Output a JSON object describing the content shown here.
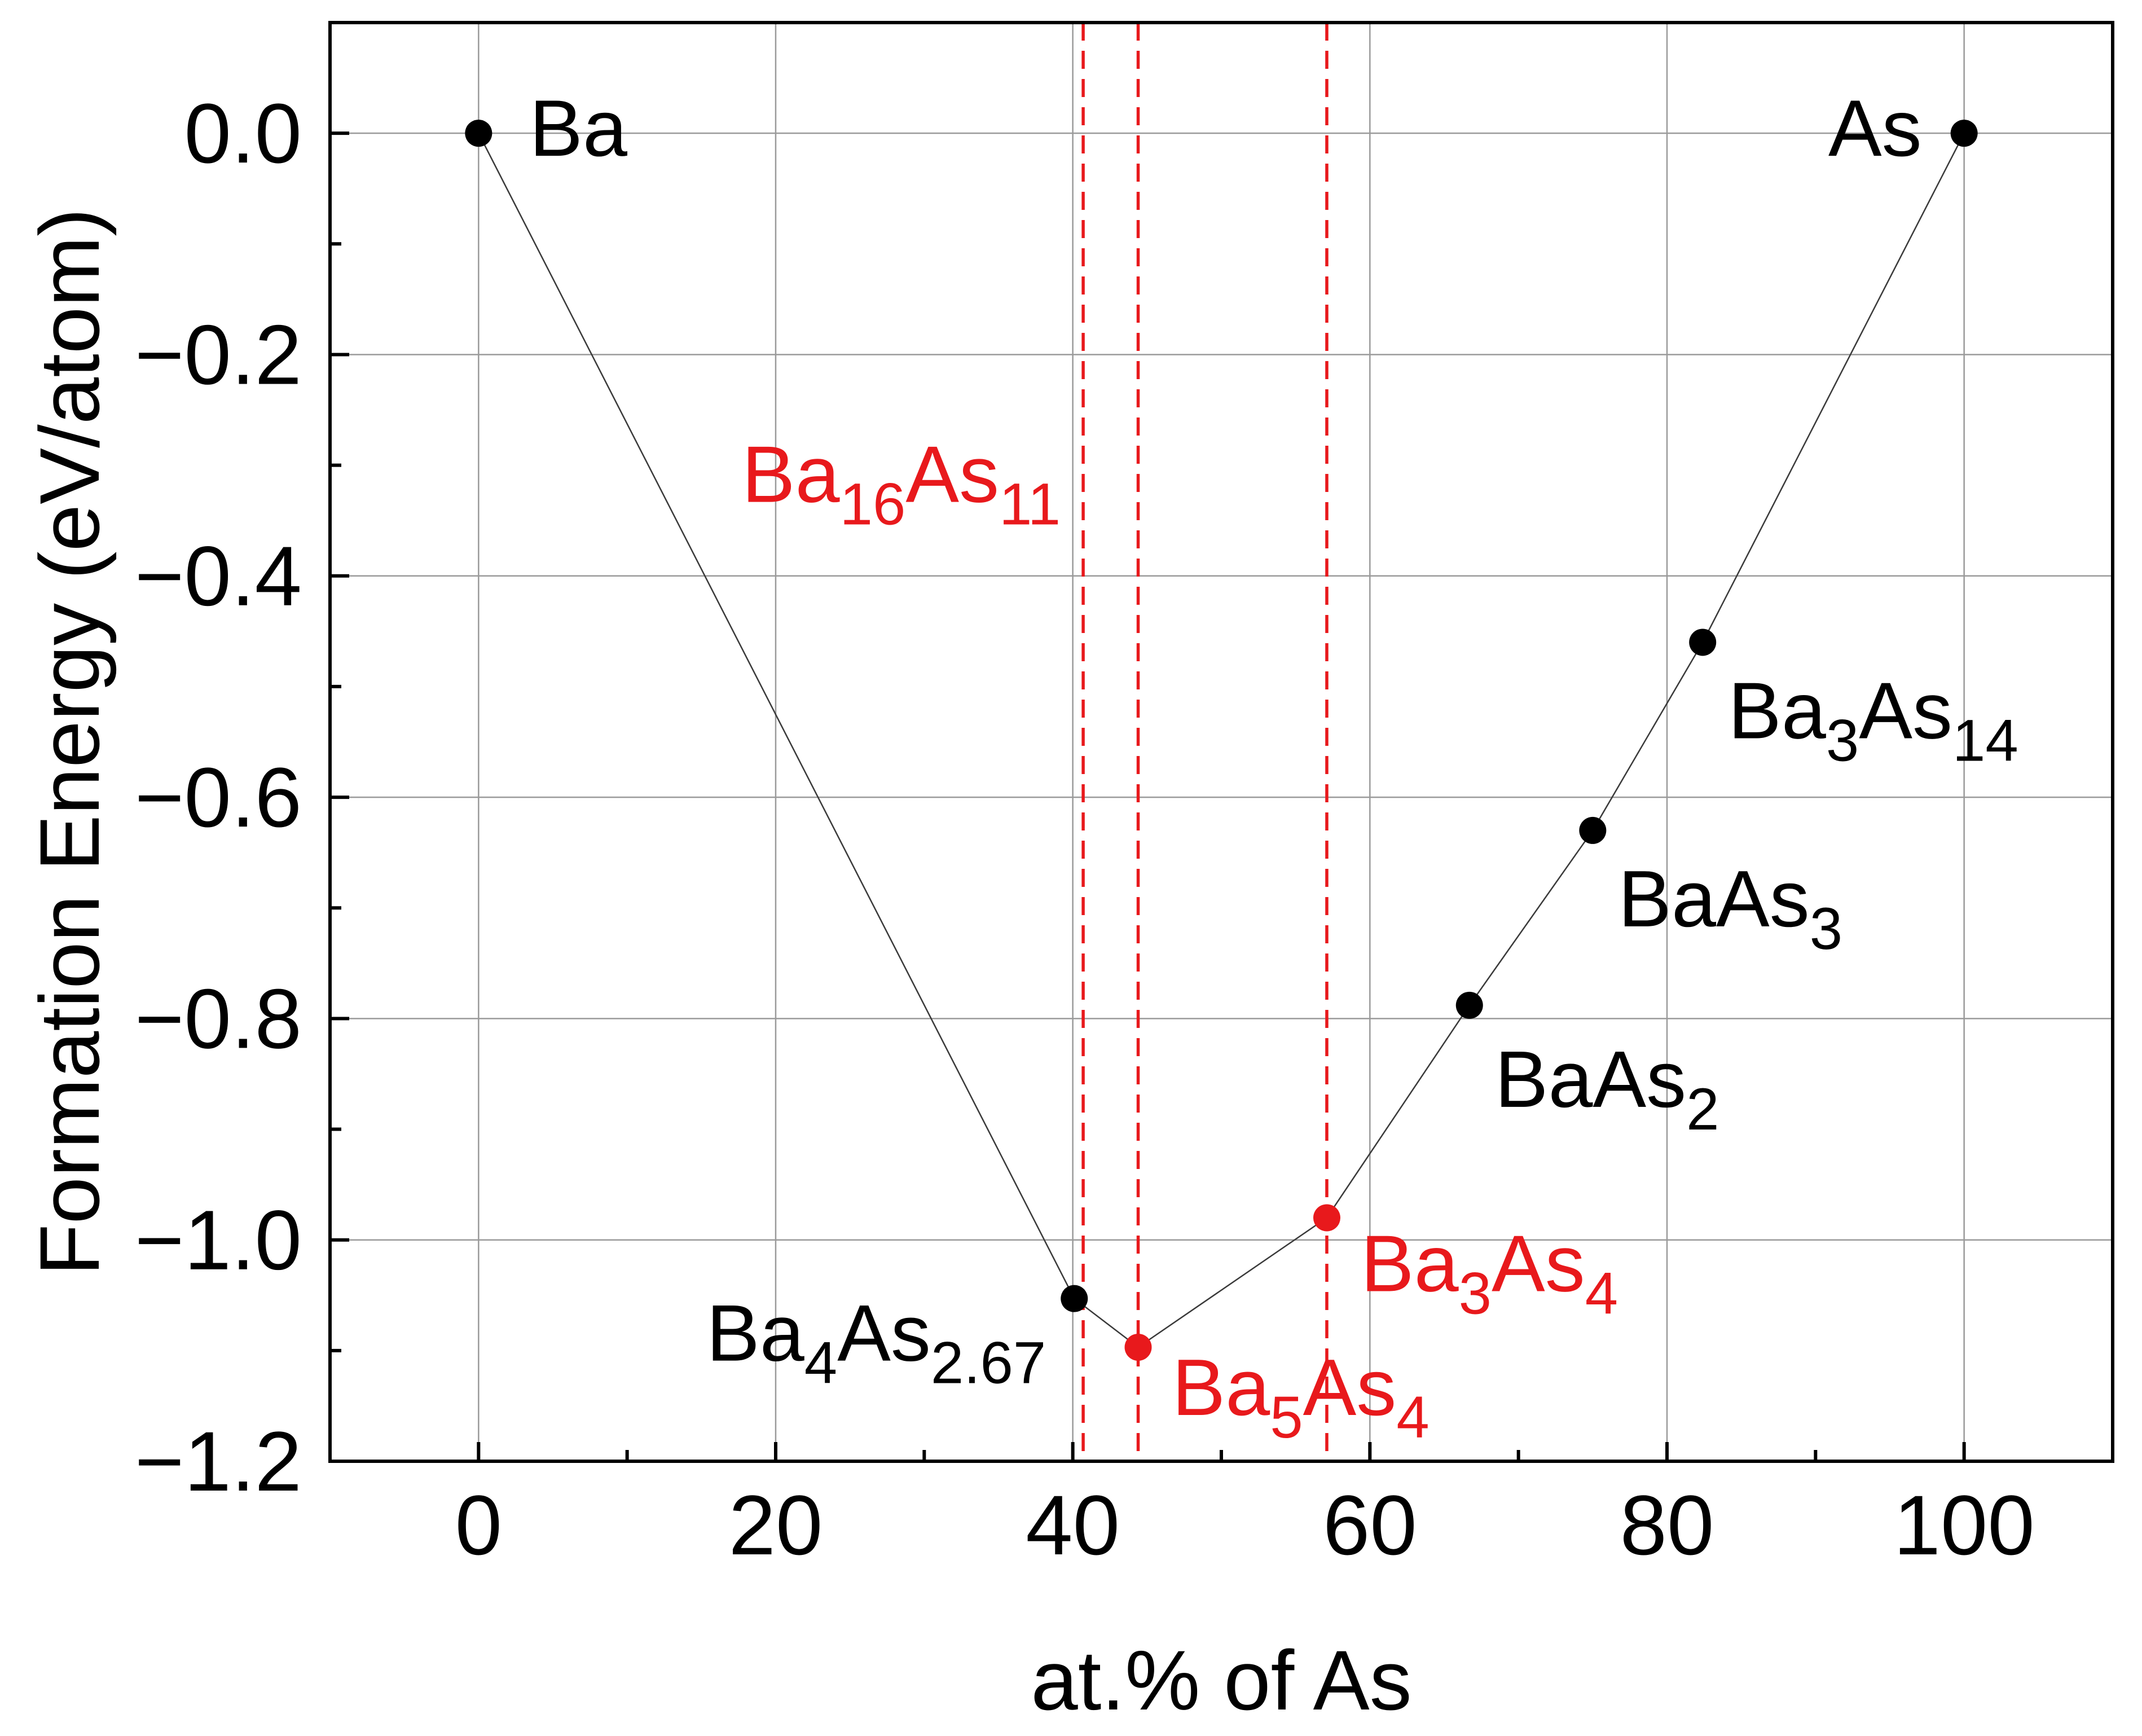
{
  "chart_data": {
    "type": "scatter",
    "xlabel": "at.% of As",
    "ylabel": "Formation Energy (eV/atom)",
    "xlim": [
      -10,
      110
    ],
    "ylim": [
      -1.2,
      0.1
    ],
    "xticks": [
      0,
      20,
      40,
      60,
      80,
      100
    ],
    "yticks": [
      0.0,
      -0.2,
      -0.4,
      -0.6,
      -0.8,
      -1.0,
      -1.2
    ],
    "xtick_labels": [
      "0",
      "20",
      "40",
      "60",
      "80",
      "100"
    ],
    "ytick_labels": [
      "0.0",
      "−0.2",
      "−0.4",
      "−0.6",
      "−0.8",
      "−1.0",
      "−1.2"
    ],
    "grid": true,
    "colors": {
      "stable": "#000000",
      "highlight": "#e8191c",
      "hull_line": "#3a3a3a"
    },
    "points": [
      {
        "x": 0,
        "y": 0.0,
        "label": "Ba",
        "highlight": false,
        "parts": [
          [
            "Ba",
            ""
          ]
        ]
      },
      {
        "x": 40.1,
        "y": -1.053,
        "label": "Ba4As2.67",
        "highlight": false,
        "parts": [
          [
            "Ba",
            ""
          ],
          [
            "4",
            "sub"
          ],
          [
            "As",
            ""
          ],
          [
            "2.67",
            "sub"
          ]
        ]
      },
      {
        "x": 44.4,
        "y": -1.097,
        "label": "Ba5As4",
        "highlight": true,
        "parts": [
          [
            "Ba",
            ""
          ],
          [
            "5",
            "sub"
          ],
          [
            "As",
            ""
          ],
          [
            "4",
            "sub"
          ]
        ]
      },
      {
        "x": 57.1,
        "y": -0.98,
        "label": "Ba3As4",
        "highlight": true,
        "parts": [
          [
            "Ba",
            ""
          ],
          [
            "3",
            "sub"
          ],
          [
            "As",
            ""
          ],
          [
            "4",
            "sub"
          ]
        ]
      },
      {
        "x": 66.7,
        "y": -0.788,
        "label": "BaAs2",
        "highlight": false,
        "parts": [
          [
            "BaAs",
            ""
          ],
          [
            "2",
            "sub"
          ]
        ]
      },
      {
        "x": 75.0,
        "y": -0.63,
        "label": "BaAs3",
        "highlight": false,
        "parts": [
          [
            "BaAs",
            ""
          ],
          [
            "3",
            "sub"
          ]
        ]
      },
      {
        "x": 82.4,
        "y": -0.46,
        "label": "Ba3As14",
        "highlight": false,
        "parts": [
          [
            "Ba",
            ""
          ],
          [
            "3",
            "sub"
          ],
          [
            "As",
            ""
          ],
          [
            "14",
            "sub"
          ]
        ]
      },
      {
        "x": 100,
        "y": 0.0,
        "label": "As",
        "highlight": false,
        "parts": [
          [
            "As",
            ""
          ]
        ]
      }
    ],
    "hull_order": [
      0,
      1,
      2,
      3,
      4,
      5,
      6,
      7
    ],
    "vertical_lines": [
      {
        "x": 40.7,
        "label": "Ba16As11",
        "parts": [
          [
            "Ba",
            ""
          ],
          [
            "16",
            "sub"
          ],
          [
            "As",
            ""
          ],
          [
            "11",
            "sub"
          ]
        ]
      },
      {
        "x": 44.4
      },
      {
        "x": 57.1
      }
    ]
  }
}
